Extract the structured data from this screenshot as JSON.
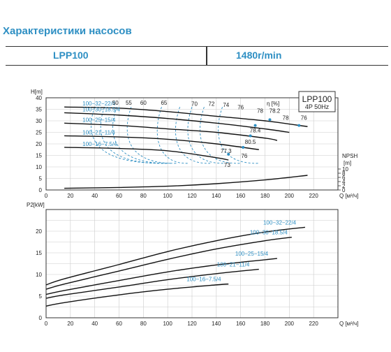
{
  "header": {
    "title": "Характеристики насосов",
    "model": "LPP100",
    "speed": "1480r/min"
  },
  "colors": {
    "accent": "#2E8FC3",
    "curve": "#111111",
    "grid": "#cccccc"
  },
  "chart_data": [
    {
      "type": "line",
      "ylabel": "H[m]",
      "xlabel": "Q [м³/ч]",
      "xlim": [
        0,
        240
      ],
      "ylim": [
        0,
        40
      ],
      "x_ticks": [
        0,
        20,
        40,
        60,
        80,
        100,
        120,
        140,
        160,
        180,
        200,
        220
      ],
      "y_ticks": [
        0,
        5,
        10,
        15,
        20,
        25,
        30,
        35,
        40
      ],
      "info_box": {
        "model": "LPP100",
        "spec": "4P  50Hz"
      },
      "efficiency_unit": "η  [%]",
      "series": [
        {
          "name": "100−32−22/4",
          "x": [
            15,
            60,
            100,
            140,
            180,
            215
          ],
          "y": [
            36,
            35.5,
            34,
            32,
            30,
            27.5
          ]
        },
        {
          "name": "100−30−18.5/4",
          "x": [
            15,
            60,
            100,
            140,
            180,
            200
          ],
          "y": [
            33.5,
            32.5,
            31,
            29,
            26.5,
            25
          ]
        },
        {
          "name": "100−25−15/4",
          "x": [
            15,
            60,
            100,
            140,
            180,
            190
          ],
          "y": [
            29,
            28,
            26.5,
            25,
            22.5,
            21.5
          ]
        },
        {
          "name": "100−21−11/4",
          "x": [
            15,
            60,
            100,
            140,
            175
          ],
          "y": [
            23.5,
            23,
            22,
            20,
            17.5
          ]
        },
        {
          "name": "100−16−7.5/4",
          "x": [
            15,
            60,
            100,
            140,
            150
          ],
          "y": [
            18.5,
            18,
            17,
            14,
            13
          ]
        }
      ],
      "npsh": {
        "label": "NPSH",
        "unit": "[m]",
        "ticks": [
          0,
          2,
          4,
          6,
          8,
          10
        ],
        "x": [
          15,
          60,
          100,
          140,
          180,
          215
        ],
        "y": [
          0.8,
          1.2,
          1.8,
          3,
          4.8,
          7
        ]
      },
      "efficiency_labels": [
        {
          "text": "50",
          "x": 57,
          "y": 37
        },
        {
          "text": "55",
          "x": 68,
          "y": 37
        },
        {
          "text": "60",
          "x": 80,
          "y": 37
        },
        {
          "text": "65",
          "x": 97,
          "y": 37
        },
        {
          "text": "70",
          "x": 122,
          "y": 36.5
        },
        {
          "text": "72",
          "x": 136,
          "y": 36.5
        },
        {
          "text": "74",
          "x": 148,
          "y": 36
        },
        {
          "text": "76",
          "x": 160,
          "y": 35
        },
        {
          "text": "78",
          "x": 176,
          "y": 33.5
        },
        {
          "text": "78.2",
          "x": 188,
          "y": 33.5
        },
        {
          "text": "78",
          "x": 197,
          "y": 30.5
        },
        {
          "text": "76",
          "x": 212,
          "y": 30.5
        },
        {
          "text": "78.4",
          "x": 172,
          "y": 25
        },
        {
          "text": "80.5",
          "x": 168,
          "y": 20
        },
        {
          "text": "77.3",
          "x": 148,
          "y": 16
        },
        {
          "text": "76",
          "x": 163,
          "y": 14
        },
        {
          "text": "73",
          "x": 149,
          "y": 10
        }
      ],
      "bep_points": [
        {
          "x": 184,
          "y": 30.5
        },
        {
          "x": 208,
          "y": 28
        },
        {
          "x": 172,
          "y": 28
        },
        {
          "x": 168,
          "y": 23.5
        },
        {
          "x": 150,
          "y": 15.5
        },
        {
          "x": 162,
          "y": 18.5
        }
      ]
    },
    {
      "type": "line",
      "ylabel": "P2[kW]",
      "xlabel": "Q [м³/ч]",
      "xlim": [
        0,
        240
      ],
      "ylim": [
        0,
        25
      ],
      "x_ticks": [
        0,
        20,
        40,
        60,
        80,
        100,
        120,
        140,
        160,
        180,
        200,
        220
      ],
      "y_ticks": [
        0,
        5,
        10,
        15,
        20
      ],
      "series": [
        {
          "name": "100−32−22/4",
          "x": [
            0,
            15,
            60,
            100,
            140,
            180,
            213
          ],
          "y": [
            7.6,
            9,
            12.3,
            15.3,
            17.8,
            19.8,
            20.9
          ]
        },
        {
          "name": "100−30−18.5/4",
          "x": [
            0,
            15,
            60,
            100,
            140,
            180,
            202
          ],
          "y": [
            6.6,
            7.8,
            10.8,
            13.5,
            15.9,
            17.8,
            18.6
          ]
        },
        {
          "name": "100−25−15/4",
          "x": [
            0,
            15,
            60,
            100,
            140,
            180,
            190
          ],
          "y": [
            5.4,
            6.3,
            8.6,
            10.6,
            12.2,
            13.4,
            13.7
          ]
        },
        {
          "name": "100−21−11/4",
          "x": [
            0,
            15,
            60,
            100,
            140,
            175
          ],
          "y": [
            4.5,
            5.3,
            7.1,
            8.8,
            10.2,
            11.2
          ]
        },
        {
          "name": "100−16−7.5/4",
          "x": [
            0,
            15,
            60,
            100,
            140,
            150
          ],
          "y": [
            2.7,
            3.5,
            5.3,
            6.6,
            7.6,
            7.8
          ]
        }
      ]
    }
  ]
}
